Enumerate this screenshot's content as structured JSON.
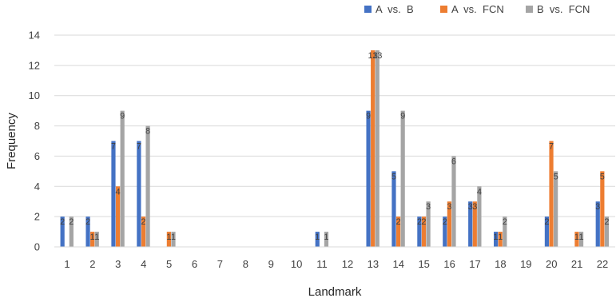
{
  "chart_data": {
    "type": "bar",
    "title": "",
    "xlabel": "Landmark",
    "ylabel": "Frequency",
    "ylim": [
      0,
      14
    ],
    "yticks": [
      0,
      2,
      4,
      6,
      8,
      10,
      12,
      14
    ],
    "grid": true,
    "legend_position": "top-right",
    "categories": [
      "1",
      "2",
      "3",
      "4",
      "5",
      "6",
      "7",
      "8",
      "9",
      "10",
      "11",
      "12",
      "13",
      "14",
      "15",
      "16",
      "17",
      "18",
      "19",
      "20",
      "21",
      "22"
    ],
    "series": [
      {
        "name": "A  vs.  B",
        "color": "#4472C4",
        "values": [
          2,
          2,
          7,
          7,
          0,
          0,
          0,
          0,
          0,
          0,
          1,
          0,
          9,
          5,
          2,
          2,
          3,
          1,
          0,
          2,
          0,
          3
        ]
      },
      {
        "name": "A  vs.  FCN",
        "color": "#ED7D31",
        "values": [
          0,
          1,
          4,
          2,
          1,
          0,
          0,
          0,
          0,
          0,
          0,
          0,
          13,
          2,
          2,
          3,
          3,
          1,
          0,
          7,
          1,
          5
        ]
      },
      {
        "name": "B  vs.  FCN",
        "color": "#A5A5A5",
        "values": [
          2,
          1,
          9,
          8,
          1,
          0,
          0,
          0,
          0,
          0,
          1,
          0,
          13,
          9,
          3,
          6,
          4,
          2,
          0,
          5,
          1,
          2
        ]
      }
    ]
  }
}
